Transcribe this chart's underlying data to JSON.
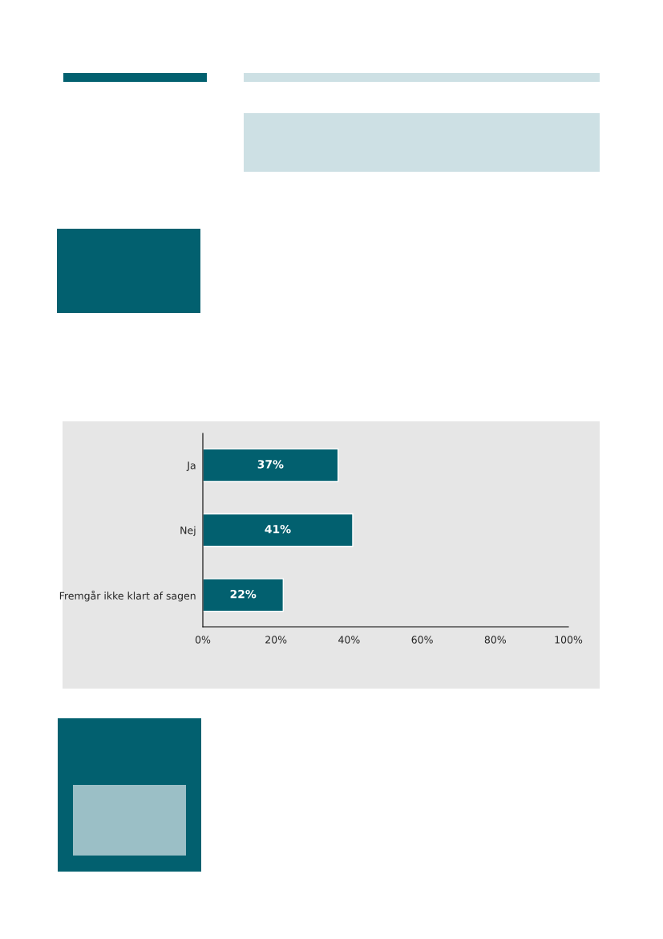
{
  "chart_data": {
    "type": "bar",
    "orientation": "horizontal",
    "categories": [
      "Ja",
      "Nej",
      "Fremgår ikke klart af sagen"
    ],
    "values": [
      37,
      41,
      22
    ],
    "color": "#02606f",
    "value_labels": [
      "37%",
      "41%",
      "22%"
    ],
    "xlim": [
      0,
      100
    ],
    "xticks": [
      {
        "value": 0,
        "label": "0%"
      },
      {
        "value": 20,
        "label": "20%"
      },
      {
        "value": 40,
        "label": "40%"
      },
      {
        "value": 60,
        "label": "60%"
      },
      {
        "value": 80,
        "label": "80%"
      },
      {
        "value": 100,
        "label": "100%"
      }
    ],
    "grid": false,
    "legend": false
  }
}
